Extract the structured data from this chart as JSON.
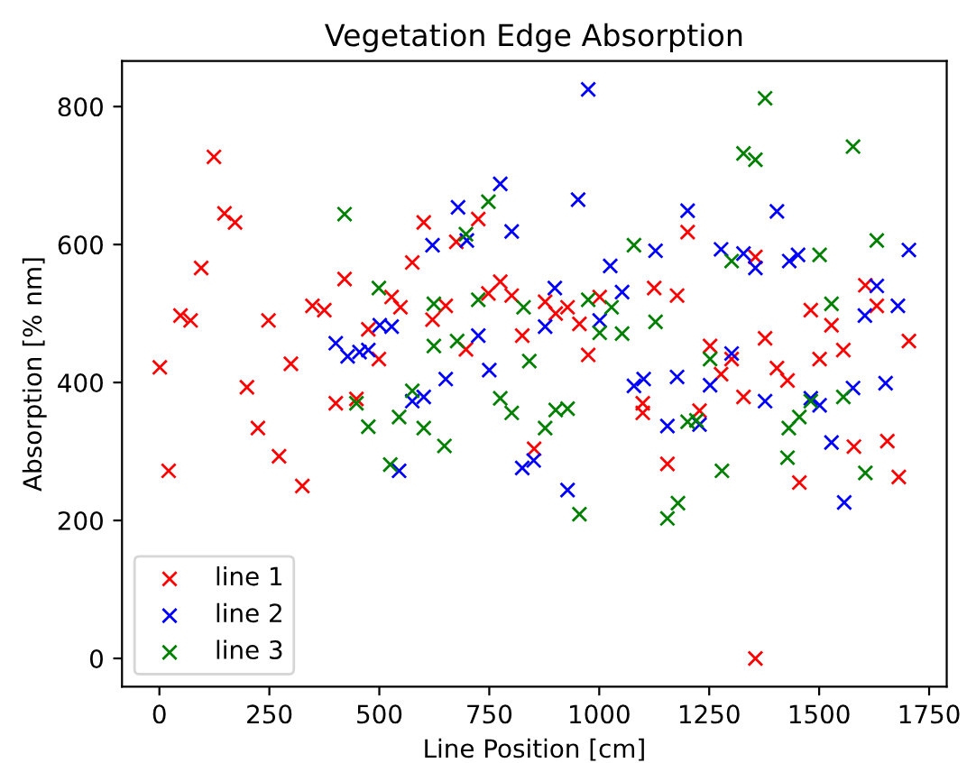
{
  "chart_data": {
    "type": "scatter",
    "title": "Vegetation Edge Absorption",
    "xlabel": "Line Position [cm]",
    "ylabel": "Absorption [% nm]",
    "xlim": [
      -85,
      1790
    ],
    "ylim": [
      -41,
      866
    ],
    "xticks": [
      0,
      250,
      500,
      750,
      1000,
      1250,
      1500,
      1750
    ],
    "yticks": [
      0,
      200,
      400,
      600,
      800
    ],
    "marker": "cross",
    "legend": "bottom left",
    "grid": false,
    "series": [
      {
        "name": "line 1",
        "color": "#ff0000",
        "x": [
          1,
          21,
          48,
          71,
          95,
          124,
          148,
          172,
          199,
          224,
          248,
          272,
          299,
          325,
          348,
          375,
          401,
          421,
          448,
          475,
          499,
          528,
          548,
          575,
          601,
          621,
          651,
          675,
          697,
          725,
          748,
          775,
          801,
          825,
          852,
          877,
          901,
          928,
          955,
          975,
          1001,
          1099,
          1099,
          1125,
          1155,
          1177,
          1201,
          1228,
          1252,
          1277,
          1301,
          1328,
          1355,
          1355,
          1377,
          1404,
          1428,
          1455,
          1481,
          1501,
          1528,
          1555,
          1579,
          1605,
          1631,
          1655,
          1681,
          1704
        ],
        "values": [
          422,
          272,
          497,
          490,
          566,
          727,
          645,
          632,
          393,
          334,
          490,
          293,
          427,
          250,
          511,
          505,
          370,
          550,
          376,
          477,
          434,
          524,
          509,
          574,
          632,
          491,
          511,
          604,
          448,
          637,
          529,
          546,
          526,
          468,
          304,
          517,
          500,
          509,
          485,
          440,
          524,
          370,
          356,
          537,
          282,
          526,
          618,
          359,
          453,
          412,
          434,
          379,
          582,
          0,
          464,
          421,
          403,
          255,
          505,
          434,
          483,
          447,
          307,
          541,
          511,
          315,
          263,
          460
        ]
      },
      {
        "name": "line 2",
        "color": "#0000ff",
        "x": [
          401,
          428,
          455,
          475,
          501,
          528,
          545,
          575,
          601,
          621,
          651,
          679,
          699,
          725,
          750,
          775,
          801,
          825,
          851,
          877,
          899,
          928,
          952,
          975,
          1001,
          1025,
          1052,
          1079,
          1101,
          1128,
          1155,
          1177,
          1201,
          1228,
          1252,
          1277,
          1301,
          1328,
          1355,
          1377,
          1404,
          1432,
          1452,
          1481,
          1501,
          1528,
          1557,
          1577,
          1604,
          1631,
          1651,
          1679,
          1704
        ],
        "values": [
          457,
          438,
          444,
          447,
          483,
          481,
          272,
          373,
          379,
          599,
          405,
          654,
          606,
          468,
          418,
          688,
          619,
          276,
          287,
          481,
          537,
          244,
          665,
          825,
          490,
          569,
          531,
          395,
          405,
          591,
          337,
          408,
          649,
          339,
          396,
          593,
          442,
          587,
          566,
          373,
          648,
          576,
          585,
          377,
          367,
          313,
          226,
          392,
          497,
          540,
          399,
          511,
          592
        ]
      },
      {
        "name": "line 3",
        "color": "#008000",
        "x": [
          421,
          448,
          475,
          499,
          525,
          545,
          575,
          601,
          624,
          624,
          648,
          677,
          697,
          725,
          748,
          775,
          801,
          828,
          841,
          877,
          901,
          928,
          955,
          975,
          1001,
          1028,
          1052,
          1079,
          1128,
          1155,
          1179,
          1201,
          1221,
          1252,
          1279,
          1301,
          1328,
          1355,
          1377,
          1428,
          1431,
          1455,
          1481,
          1501,
          1528,
          1555,
          1577,
          1605,
          1631
        ],
        "values": [
          644,
          370,
          336,
          537,
          281,
          350,
          388,
          334,
          514,
          453,
          308,
          460,
          615,
          520,
          662,
          377,
          356,
          509,
          431,
          334,
          360,
          362,
          209,
          520,
          472,
          509,
          471,
          599,
          488,
          203,
          225,
          343,
          345,
          434,
          272,
          576,
          732,
          723,
          812,
          291,
          334,
          350,
          373,
          585,
          514,
          379,
          742,
          269,
          606
        ]
      }
    ]
  }
}
